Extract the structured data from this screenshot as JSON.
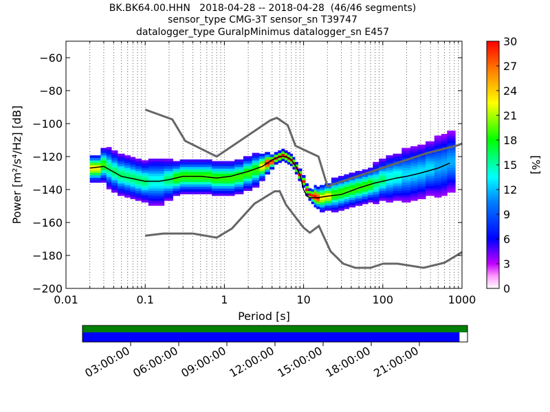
{
  "chart_data": {
    "type": "heatmap",
    "title": [
      "BK.BK64.00.HHN   2018-04-28 -- 2018-04-28  (46/46 segments)",
      "sensor_type CMG-3T sensor_sn T39747",
      "datalogger_type GuralpMinimus datalogger_sn E457"
    ],
    "xlabel": "Period [s]",
    "ylabel": "Power [m²/s⁴/Hz] [dB]",
    "x_scale": "log",
    "xlim": [
      0.01,
      1000
    ],
    "ylim": [
      -200,
      -50
    ],
    "x_ticks": [
      0.01,
      0.1,
      1,
      10,
      100,
      1000
    ],
    "x_tick_labels": [
      "0.01",
      "0.1",
      "1",
      "10",
      "100",
      "1000"
    ],
    "y_ticks": [
      -200,
      -180,
      -160,
      -140,
      -120,
      -100,
      -80,
      -60
    ],
    "y_tick_labels": [
      "−200",
      "−180",
      "−160",
      "−140",
      "−120",
      "−100",
      "−80",
      "−60"
    ],
    "grid": "dotted vertical lines",
    "colorbar": {
      "label": "[%]",
      "range": [
        0,
        30
      ],
      "ticks": [
        0,
        3,
        6,
        9,
        12,
        15,
        18,
        21,
        24,
        27,
        30
      ]
    },
    "series": [
      {
        "role": "noise-model-high",
        "x": [
          0.1,
          0.22,
          0.32,
          0.8,
          3.8,
          4.6,
          6.3,
          7.9,
          15.4,
          20,
          354.8,
          912,
          1000
        ],
        "y": [
          -91.5,
          -97.4,
          -110.5,
          -120,
          -98,
          -96.5,
          -101,
          -113.5,
          -120,
          -138,
          -118,
          -113,
          -112
        ]
      },
      {
        "role": "noise-model-low",
        "x": [
          0.1,
          0.17,
          0.4,
          0.8,
          1.24,
          2.4,
          4.3,
          5,
          6,
          10,
          12,
          15.6,
          21.9,
          31.6,
          45,
          70,
          101,
          154,
          328,
          600,
          1000
        ],
        "y": [
          -168,
          -166.7,
          -166.7,
          -169.2,
          -163.7,
          -148.6,
          -141.1,
          -141.1,
          -149.2,
          -163.2,
          -166.2,
          -162.1,
          -177.5,
          -185,
          -187.5,
          -187.5,
          -185,
          -185,
          -187.5,
          -184.4,
          -178
        ]
      },
      {
        "role": "median",
        "x": [
          0.02,
          0.03,
          0.05,
          0.08,
          0.1,
          0.15,
          0.2,
          0.3,
          0.5,
          0.8,
          1.2,
          2,
          3,
          4,
          5,
          6,
          7,
          8,
          9,
          10,
          11,
          12,
          13,
          15,
          20,
          30,
          50,
          80,
          100,
          150,
          200,
          300,
          500,
          700
        ],
        "y": [
          -127,
          -126,
          -132,
          -134,
          -135,
          -135,
          -134,
          -132,
          -132,
          -133,
          -132,
          -129,
          -126,
          -122,
          -120,
          -120,
          -122,
          -126,
          -131,
          -140,
          -144,
          -145,
          -145,
          -145,
          -144,
          -143,
          -139,
          -136,
          -135,
          -133,
          -132,
          -130,
          -127,
          -124
        ]
      }
    ],
    "psd_heatmap": {
      "x": [
        0.02,
        0.025,
        0.03,
        0.035,
        0.04,
        0.05,
        0.06,
        0.07,
        0.08,
        0.1,
        0.12,
        0.15,
        0.2,
        0.25,
        0.3,
        0.4,
        0.5,
        0.6,
        0.8,
        1,
        1.2,
        1.5,
        2,
        2.5,
        3,
        3.5,
        4,
        4.5,
        5,
        5.5,
        6,
        6.5,
        7,
        7.5,
        8,
        9,
        10,
        11,
        12,
        13,
        14,
        15,
        17,
        20,
        25,
        30,
        35,
        40,
        50,
        60,
        70,
        80,
        100,
        120,
        150,
        200,
        250,
        300,
        400,
        500,
        600,
        700
      ],
      "y": [
        -127,
        -127,
        -125,
        -127,
        -129,
        -131,
        -132,
        -133,
        -134,
        -135,
        -135,
        -135,
        -134,
        -133,
        -132,
        -132,
        -132,
        -132,
        -133,
        -133,
        -133,
        -132,
        -130,
        -128,
        -126,
        -124,
        -123,
        -121,
        -120,
        -119,
        -120,
        -121,
        -122,
        -124,
        -127,
        -131,
        -135,
        -140,
        -143,
        -144,
        -144,
        -145,
        -145,
        -144,
        -143,
        -142,
        -141,
        -140,
        -139,
        -138,
        -137,
        -136,
        -134,
        -133,
        -132,
        -131,
        -130,
        -129,
        -127,
        -126,
        -125,
        -123
      ],
      "spread": [
        4,
        4,
        5,
        6,
        6,
        6,
        6,
        6,
        6,
        6,
        7,
        7,
        6,
        5,
        5,
        5,
        5,
        5,
        5,
        5,
        5,
        5,
        5,
        5,
        4,
        3,
        2,
        1.5,
        1.5,
        1.5,
        1.5,
        1.5,
        1.5,
        1.5,
        1.5,
        1.5,
        1.5,
        1.5,
        1.5,
        2,
        3,
        3,
        4,
        4,
        5,
        5,
        5,
        5,
        5,
        5,
        5,
        6,
        6,
        7,
        7,
        8,
        8,
        8,
        8,
        9,
        9,
        9
      ]
    },
    "time_coverage": {
      "tick_labels": [
        "03:00:00",
        "06:00:00",
        "09:00:00",
        "12:00:00",
        "15:00:00",
        "18:00:00",
        "21:00:00"
      ],
      "range_hours": [
        0,
        24
      ],
      "bars": [
        {
          "role": "segments",
          "color": "#008000",
          "start_h": 0,
          "end_h": 24
        },
        {
          "role": "data",
          "color": "#0000ff",
          "start_h": 0,
          "end_h": 23.5
        }
      ]
    }
  }
}
